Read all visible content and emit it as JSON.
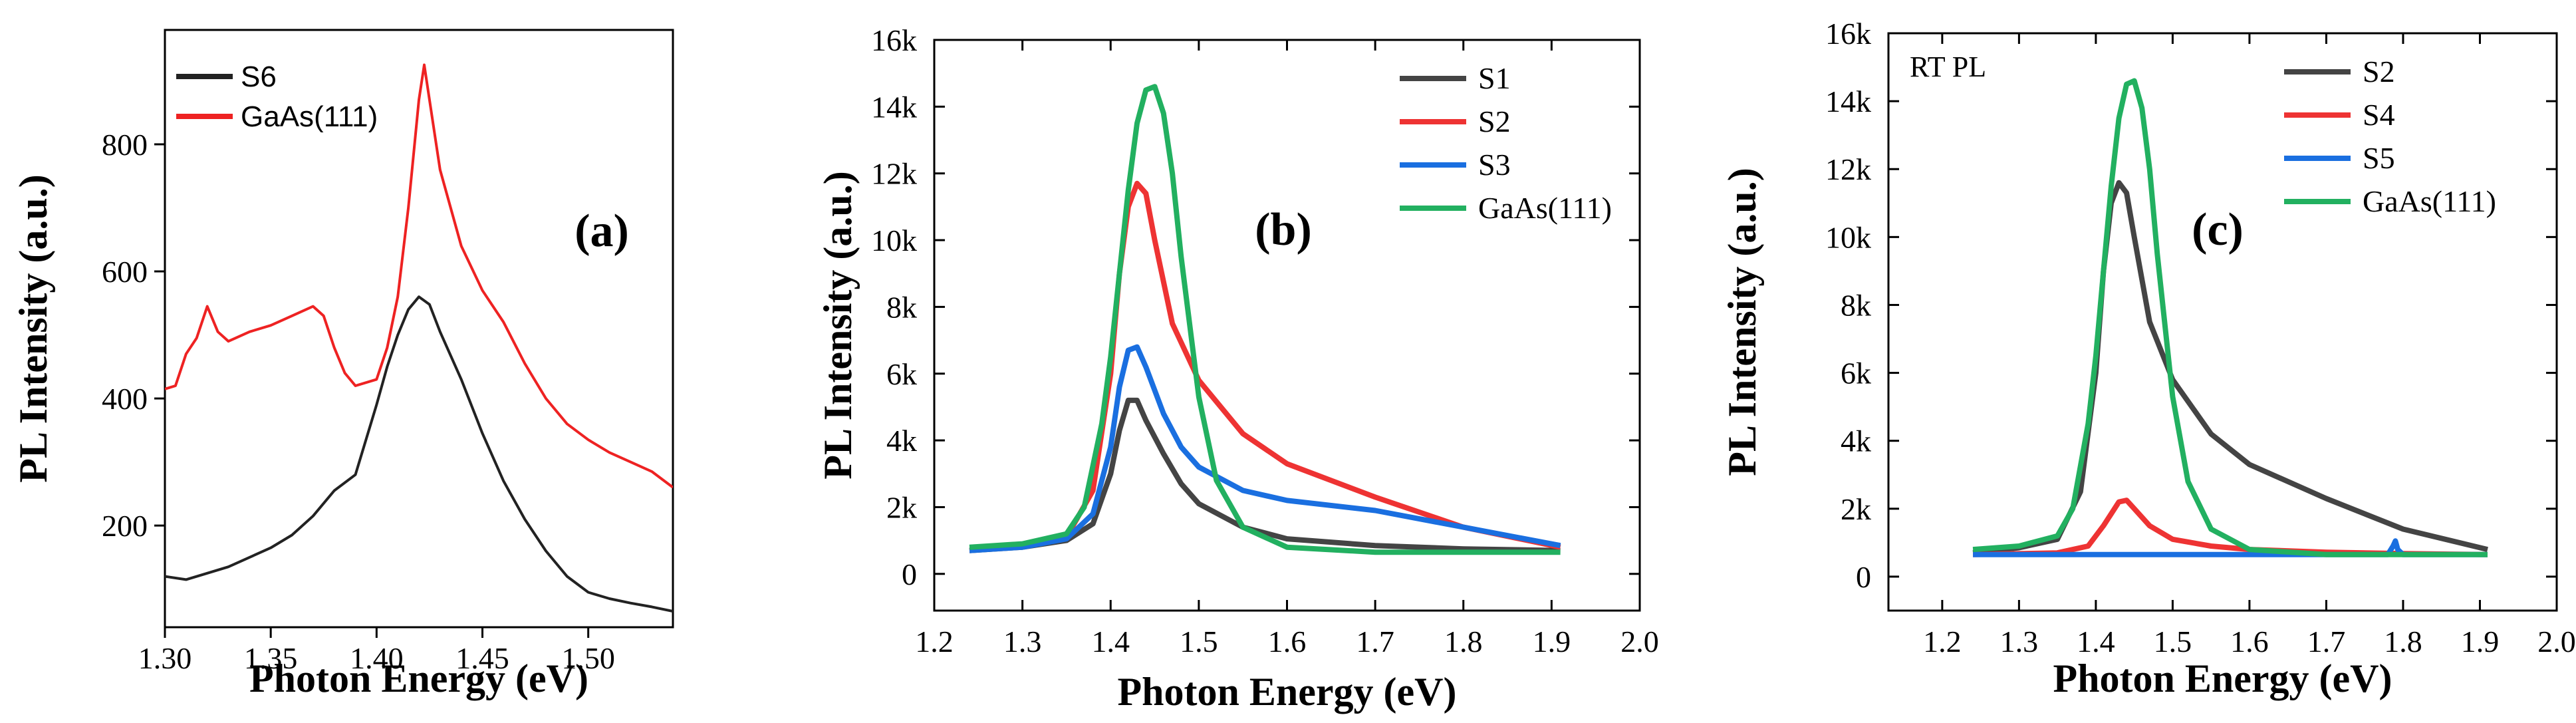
{
  "chart_data": [
    {
      "id": "a",
      "type": "line",
      "panel_label": "(a)",
      "xlabel": "Photon Energy (eV)",
      "ylabel": "PL Intensity (a.u.)",
      "xlim": [
        1.3,
        1.54
      ],
      "ylim": [
        40,
        980
      ],
      "xticks": [
        1.3,
        1.35,
        1.4,
        1.45,
        1.5
      ],
      "xtick_labels": [
        "1.30",
        "1.35",
        "1.40",
        "1.45",
        "1.50"
      ],
      "yticks": [
        200,
        400,
        600,
        800
      ],
      "ytick_labels": [
        "200",
        "400",
        "600",
        "800"
      ],
      "legend_position": "top-left",
      "series": [
        {
          "name": "S6",
          "color": "#222222",
          "x": [
            1.3,
            1.31,
            1.32,
            1.33,
            1.34,
            1.35,
            1.36,
            1.37,
            1.38,
            1.39,
            1.4,
            1.405,
            1.41,
            1.415,
            1.42,
            1.425,
            1.43,
            1.44,
            1.45,
            1.46,
            1.47,
            1.48,
            1.49,
            1.5,
            1.51,
            1.52,
            1.53,
            1.54
          ],
          "y": [
            120,
            115,
            125,
            135,
            150,
            165,
            185,
            215,
            255,
            280,
            390,
            450,
            500,
            540,
            560,
            548,
            505,
            430,
            345,
            270,
            210,
            160,
            120,
            95,
            85,
            78,
            72,
            65
          ]
        },
        {
          "name": "GaAs(111)",
          "color": "#ee2222",
          "x": [
            1.3,
            1.305,
            1.31,
            1.315,
            1.32,
            1.325,
            1.33,
            1.34,
            1.35,
            1.36,
            1.37,
            1.375,
            1.38,
            1.385,
            1.39,
            1.4,
            1.405,
            1.41,
            1.415,
            1.42,
            1.4225,
            1.425,
            1.43,
            1.44,
            1.45,
            1.46,
            1.47,
            1.48,
            1.49,
            1.5,
            1.51,
            1.52,
            1.53,
            1.54
          ],
          "y": [
            415,
            420,
            470,
            495,
            545,
            505,
            490,
            505,
            515,
            530,
            545,
            530,
            480,
            440,
            420,
            430,
            480,
            560,
            700,
            870,
            925,
            870,
            760,
            640,
            570,
            520,
            455,
            400,
            360,
            335,
            315,
            300,
            285,
            260
          ]
        }
      ]
    },
    {
      "id": "b",
      "type": "line",
      "panel_label": "(b)",
      "xlabel": "Photon Energy (eV)",
      "ylabel": "PL Intensity (a.u.)",
      "xlim": [
        1.2,
        2.0
      ],
      "ylim": [
        -1100,
        16000
      ],
      "xticks": [
        1.2,
        1.3,
        1.4,
        1.5,
        1.6,
        1.7,
        1.8,
        1.9,
        2.0
      ],
      "xtick_labels": [
        "1.2",
        "1.3",
        "1.4",
        "1.5",
        "1.6",
        "1.7",
        "1.8",
        "1.9",
        "2.0"
      ],
      "yticks": [
        0,
        2000,
        4000,
        6000,
        8000,
        10000,
        12000,
        14000,
        16000
      ],
      "ytick_labels": [
        "0",
        "2k",
        "4k",
        "6k",
        "8k",
        "10k",
        "12k",
        "14k",
        "16k"
      ],
      "legend_position": "top-right",
      "series": [
        {
          "name": "S1",
          "color": "#444444",
          "x": [
            1.24,
            1.3,
            1.35,
            1.38,
            1.4,
            1.41,
            1.42,
            1.43,
            1.44,
            1.46,
            1.48,
            1.5,
            1.55,
            1.6,
            1.7,
            1.8,
            1.91
          ],
          "y": [
            700,
            800,
            1000,
            1500,
            3000,
            4300,
            5200,
            5200,
            4600,
            3600,
            2700,
            2100,
            1400,
            1050,
            850,
            750,
            700
          ]
        },
        {
          "name": "S2",
          "color": "#ee3333",
          "x": [
            1.24,
            1.3,
            1.35,
            1.38,
            1.4,
            1.41,
            1.42,
            1.43,
            1.44,
            1.45,
            1.47,
            1.5,
            1.55,
            1.6,
            1.7,
            1.8,
            1.91
          ],
          "y": [
            700,
            850,
            1100,
            2500,
            6000,
            9000,
            11000,
            11700,
            11400,
            10000,
            7500,
            5800,
            4200,
            3300,
            2300,
            1400,
            800
          ]
        },
        {
          "name": "S3",
          "color": "#1a6fe0",
          "x": [
            1.24,
            1.3,
            1.35,
            1.38,
            1.4,
            1.41,
            1.42,
            1.43,
            1.44,
            1.46,
            1.48,
            1.5,
            1.55,
            1.6,
            1.7,
            1.8,
            1.91
          ],
          "y": [
            700,
            800,
            1050,
            1800,
            3800,
            5600,
            6700,
            6800,
            6200,
            4800,
            3800,
            3200,
            2500,
            2200,
            1900,
            1400,
            850
          ]
        },
        {
          "name": "GaAs(111)",
          "color": "#22b060",
          "x": [
            1.24,
            1.3,
            1.35,
            1.37,
            1.39,
            1.4,
            1.41,
            1.42,
            1.43,
            1.44,
            1.45,
            1.46,
            1.47,
            1.48,
            1.5,
            1.52,
            1.55,
            1.6,
            1.7,
            1.8,
            1.91
          ],
          "y": [
            800,
            900,
            1200,
            2000,
            4500,
            6500,
            9000,
            11500,
            13500,
            14500,
            14600,
            13800,
            12000,
            9500,
            5300,
            2800,
            1400,
            800,
            650,
            650,
            650
          ]
        }
      ]
    },
    {
      "id": "c",
      "type": "line",
      "panel_label": "(c)",
      "annotation": "RT PL",
      "xlabel": "Photon Energy (eV)",
      "ylabel": "PL Intensity (a.u.)",
      "xlim": [
        1.13,
        2.0
      ],
      "ylim": [
        -1000,
        16000
      ],
      "xticks": [
        1.2,
        1.3,
        1.4,
        1.5,
        1.6,
        1.7,
        1.8,
        1.9,
        2.0
      ],
      "xtick_labels": [
        "1.2",
        "1.3",
        "1.4",
        "1.5",
        "1.6",
        "1.7",
        "1.8",
        "1.9",
        "2.0"
      ],
      "yticks": [
        0,
        2000,
        4000,
        6000,
        8000,
        10000,
        12000,
        14000,
        16000
      ],
      "ytick_labels": [
        "0",
        "2k",
        "4k",
        "6k",
        "8k",
        "10k",
        "12k",
        "14k",
        "16k"
      ],
      "legend_position": "top-right",
      "series": [
        {
          "name": "S2",
          "color": "#444444",
          "x": [
            1.24,
            1.3,
            1.35,
            1.38,
            1.4,
            1.41,
            1.42,
            1.43,
            1.44,
            1.45,
            1.47,
            1.5,
            1.55,
            1.6,
            1.7,
            1.8,
            1.91
          ],
          "y": [
            700,
            850,
            1100,
            2500,
            6000,
            9000,
            11000,
            11600,
            11300,
            10000,
            7500,
            5800,
            4200,
            3300,
            2300,
            1400,
            800
          ]
        },
        {
          "name": "S4",
          "color": "#ee3333",
          "x": [
            1.24,
            1.35,
            1.39,
            1.41,
            1.43,
            1.44,
            1.45,
            1.47,
            1.5,
            1.55,
            1.6,
            1.7,
            1.8,
            1.91
          ],
          "y": [
            650,
            700,
            900,
            1500,
            2200,
            2250,
            2000,
            1500,
            1100,
            900,
            800,
            720,
            680,
            650
          ]
        },
        {
          "name": "S5",
          "color": "#1a6fe0",
          "x": [
            1.24,
            1.5,
            1.78,
            1.787,
            1.79,
            1.793,
            1.8,
            1.91
          ],
          "y": [
            650,
            650,
            650,
            900,
            1050,
            800,
            650,
            650
          ]
        },
        {
          "name": "GaAs(111)",
          "color": "#22b060",
          "x": [
            1.24,
            1.3,
            1.35,
            1.37,
            1.39,
            1.4,
            1.41,
            1.42,
            1.43,
            1.44,
            1.45,
            1.46,
            1.47,
            1.48,
            1.5,
            1.52,
            1.55,
            1.6,
            1.7,
            1.8,
            1.91
          ],
          "y": [
            800,
            900,
            1200,
            2000,
            4500,
            6500,
            9000,
            11500,
            13500,
            14500,
            14600,
            13800,
            12000,
            9500,
            5300,
            2800,
            1400,
            800,
            650,
            650,
            650
          ]
        }
      ]
    }
  ]
}
